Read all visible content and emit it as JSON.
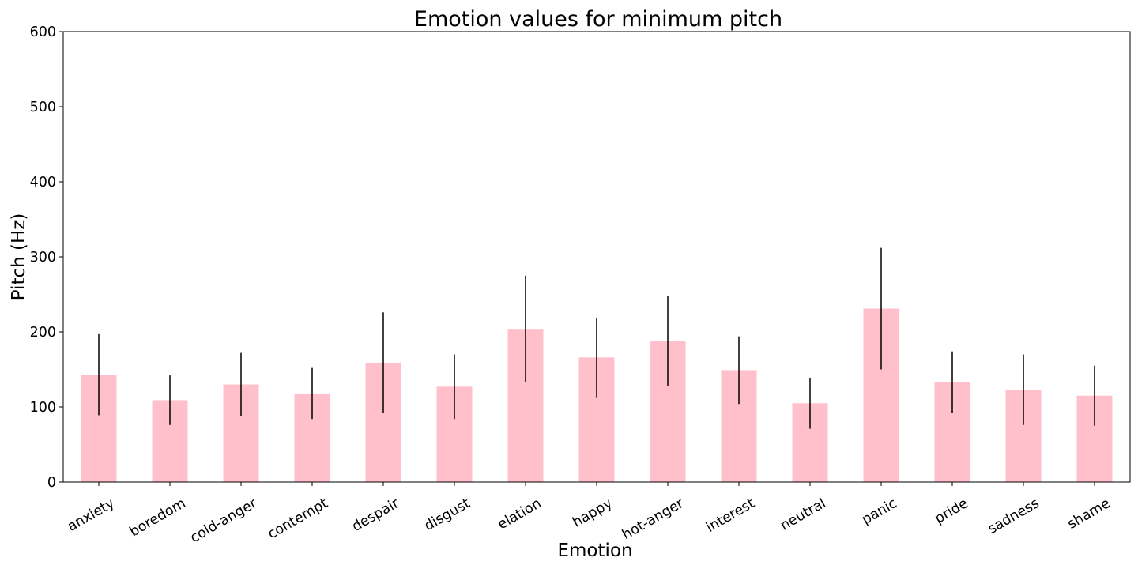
{
  "chart_data": {
    "type": "bar",
    "title": "Emotion values for minimum pitch",
    "xlabel": "Emotion",
    "ylabel": "Pitch (Hz)",
    "ylim": [
      0,
      600
    ],
    "yticks": [
      0,
      100,
      200,
      300,
      400,
      500,
      600
    ],
    "grid": false,
    "legend": "none",
    "bar_color": "#ffc0cb",
    "error_color": "#000000",
    "categories": [
      "anxiety",
      "boredom",
      "cold-anger",
      "contempt",
      "despair",
      "disgust",
      "elation",
      "happy",
      "hot-anger",
      "interest",
      "neutral",
      "panic",
      "pride",
      "sadness",
      "shame"
    ],
    "values": [
      143,
      109,
      130,
      118,
      159,
      127,
      204,
      166,
      188,
      149,
      105,
      231,
      133,
      123,
      115
    ],
    "errors": [
      54,
      33,
      42,
      34,
      67,
      43,
      71,
      53,
      60,
      45,
      34,
      81,
      41,
      47,
      40
    ]
  }
}
